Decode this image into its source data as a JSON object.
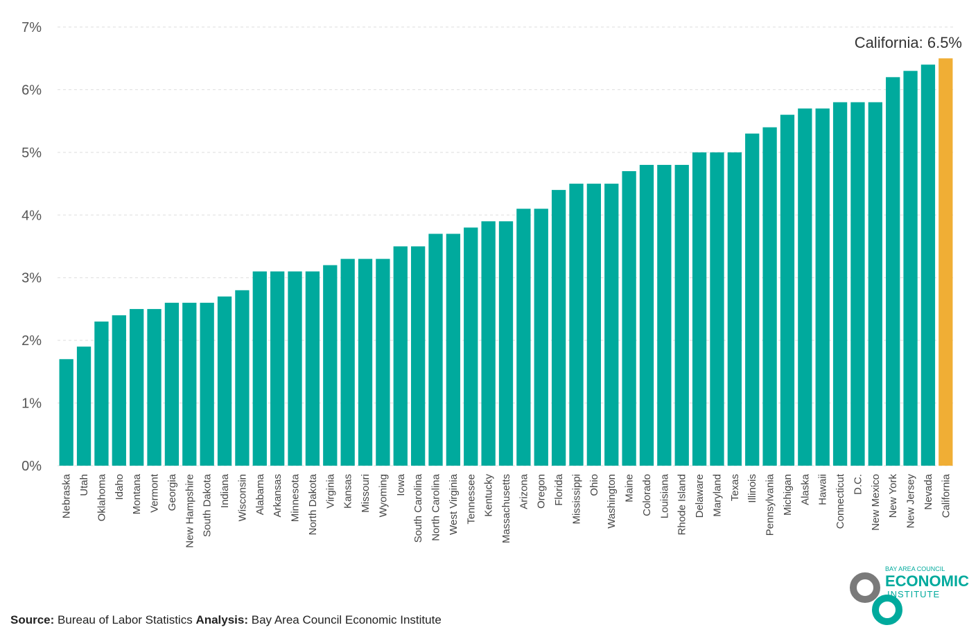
{
  "chart_data": {
    "type": "bar",
    "categories": [
      "Nebraska",
      "Utah",
      "Oklahoma",
      "Idaho",
      "Montana",
      "Vermont",
      "Georgia",
      "New Hampshire",
      "South Dakota",
      "Indiana",
      "Wisconsin",
      "Alabama",
      "Arkansas",
      "Minnesota",
      "North Dakota",
      "Virginia",
      "Kansas",
      "Missouri",
      "Wyoming",
      "Iowa",
      "South Carolina",
      "North Carolina",
      "West Virginia",
      "Tennessee",
      "Kentucky",
      "Massachusetts",
      "Arizona",
      "Oregon",
      "Florida",
      "Mississippi",
      "Ohio",
      "Washington",
      "Maine",
      "Colorado",
      "Louisiana",
      "Rhode Island",
      "Delaware",
      "Maryland",
      "Texas",
      "Illinois",
      "Pennsylvania",
      "Michigan",
      "Alaska",
      "Hawaii",
      "Connecticut",
      "D.C.",
      "New Mexico",
      "New York",
      "New Jersey",
      "Nevada",
      "California"
    ],
    "values": [
      1.7,
      1.9,
      2.3,
      2.4,
      2.5,
      2.5,
      2.6,
      2.6,
      2.6,
      2.7,
      2.8,
      3.1,
      3.1,
      3.1,
      3.1,
      3.2,
      3.3,
      3.3,
      3.3,
      3.5,
      3.5,
      3.7,
      3.7,
      3.8,
      3.9,
      3.9,
      4.1,
      4.1,
      4.4,
      4.5,
      4.5,
      4.5,
      4.7,
      4.8,
      4.8,
      4.8,
      5.0,
      5.0,
      5.0,
      5.3,
      5.4,
      5.6,
      5.7,
      5.7,
      5.8,
      5.8,
      5.8,
      6.2,
      6.3,
      6.4,
      6.5
    ],
    "colors": [
      "#00aa9d",
      "#00aa9d",
      "#00aa9d",
      "#00aa9d",
      "#00aa9d",
      "#00aa9d",
      "#00aa9d",
      "#00aa9d",
      "#00aa9d",
      "#00aa9d",
      "#00aa9d",
      "#00aa9d",
      "#00aa9d",
      "#00aa9d",
      "#00aa9d",
      "#00aa9d",
      "#00aa9d",
      "#00aa9d",
      "#00aa9d",
      "#00aa9d",
      "#00aa9d",
      "#00aa9d",
      "#00aa9d",
      "#00aa9d",
      "#00aa9d",
      "#00aa9d",
      "#00aa9d",
      "#00aa9d",
      "#00aa9d",
      "#00aa9d",
      "#00aa9d",
      "#00aa9d",
      "#00aa9d",
      "#00aa9d",
      "#00aa9d",
      "#00aa9d",
      "#00aa9d",
      "#00aa9d",
      "#00aa9d",
      "#00aa9d",
      "#00aa9d",
      "#00aa9d",
      "#00aa9d",
      "#00aa9d",
      "#00aa9d",
      "#00aa9d",
      "#00aa9d",
      "#00aa9d",
      "#00aa9d",
      "#00aa9d",
      "#f0ae35"
    ],
    "ylim": [
      0,
      7
    ],
    "yticks": [
      {
        "value": 0,
        "label": "0%"
      },
      {
        "value": 1,
        "label": "1%"
      },
      {
        "value": 2,
        "label": "2%"
      },
      {
        "value": 3,
        "label": "3%"
      },
      {
        "value": 4,
        "label": "4%"
      },
      {
        "value": 5,
        "label": "5%"
      },
      {
        "value": 6,
        "label": "6%"
      },
      {
        "value": 7,
        "label": "7%"
      }
    ],
    "grid": true,
    "annotation": "California: 6.5%",
    "source_label": "Source:",
    "source": "Bureau of Labor Statistics",
    "analysis_label": "Analysis:",
    "analysis": "Bay Area Council Economic Institute"
  },
  "logo": {
    "top": "BAY AREA COUNCIL",
    "middle": "ECONOMIC",
    "bottom": "INSTITUTE"
  }
}
